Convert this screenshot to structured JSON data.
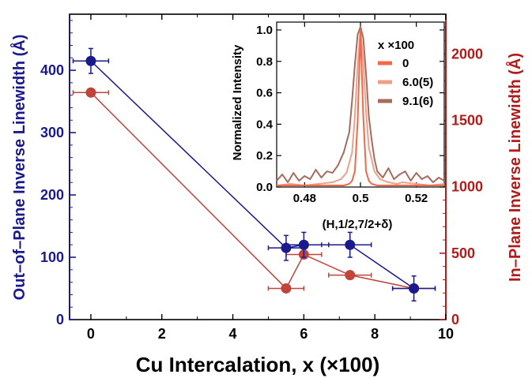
{
  "chart_data": [
    {
      "type": "scatter",
      "title": "",
      "xlabel": "Cu Intercalation, x (×100)",
      "ylabel_left": "Out–of–Plane Inverse Linewidth (Å)",
      "ylabel_right": "In–Plane Inverse Linewidth (Å)",
      "xlim": [
        -0.6,
        10
      ],
      "ylim_left": [
        0,
        490
      ],
      "ylim_right": [
        0,
        2300
      ],
      "xticks": [
        "0",
        "2",
        "4",
        "6",
        "8",
        "10"
      ],
      "yticks_left": [
        "0",
        "100",
        "200",
        "300",
        "400"
      ],
      "yticks_right": [
        "0",
        "500",
        "1000",
        "1500",
        "2000"
      ],
      "colors": {
        "left_axis": "#1a1a8c",
        "right_axis": "#b31b1b",
        "out_of_plane": "#1a1a8c",
        "in_plane": "#c0443a"
      },
      "series": [
        {
          "axis": "left",
          "points": [
            {
              "x": 0,
              "y": 415,
              "xerr": 0.5,
              "yerr": 20
            },
            {
              "x": 5.5,
              "y": 115,
              "xerr": 0.5,
              "yerr": 20
            },
            {
              "x": 6.0,
              "y": 120,
              "xerr": 0.5,
              "yerr": 20
            },
            {
              "x": 7.3,
              "y": 120,
              "xerr": 0.6,
              "yerr": 20
            },
            {
              "x": 9.1,
              "y": 50,
              "xerr": 0.6,
              "yerr": 20
            }
          ]
        },
        {
          "axis": "right",
          "points": [
            {
              "x": 0,
              "y": 1710,
              "xerr": 0.5
            },
            {
              "x": 5.5,
              "y": 235,
              "xerr": 0.5
            },
            {
              "x": 6.0,
              "y": 490,
              "xerr": 0.5
            },
            {
              "x": 7.3,
              "y": 335,
              "xerr": 0.6
            },
            {
              "x": 9.1,
              "y": 235,
              "xerr": 0.6
            }
          ]
        }
      ]
    },
    {
      "type": "line",
      "xlabel": "(H,1/2,7/2+δ)",
      "ylabel": "Normalized  Intensity",
      "xlim": [
        0.47,
        0.53
      ],
      "ylim": [
        0,
        1.05
      ],
      "xticks": [
        "0.48",
        "0.5",
        "0.52"
      ],
      "yticks": [
        "0.0",
        "0.2",
        "0.4",
        "0.6",
        "0.8",
        "1.0"
      ],
      "legend_title": "x ×100",
      "legend_position": "top-right",
      "series": [
        {
          "name": "0",
          "color": "#f06a4a",
          "x": [
            0.47,
            0.475,
            0.48,
            0.485,
            0.49,
            0.494,
            0.496,
            0.497,
            0.498,
            0.499,
            0.5,
            0.501,
            0.502,
            0.503,
            0.504,
            0.506,
            0.51,
            0.515,
            0.52,
            0.525,
            0.53
          ],
          "y": [
            0.01,
            0.01,
            0.01,
            0.01,
            0.01,
            0.01,
            0.02,
            0.04,
            0.1,
            0.42,
            1.0,
            0.45,
            0.1,
            0.04,
            0.02,
            0.01,
            0.01,
            0.01,
            0.01,
            0.01,
            0.01
          ]
        },
        {
          "name": "6.0(5)",
          "color": "#eea08a",
          "x": [
            0.47,
            0.475,
            0.48,
            0.485,
            0.49,
            0.493,
            0.495,
            0.497,
            0.498,
            0.499,
            0.5,
            0.501,
            0.502,
            0.503,
            0.505,
            0.507,
            0.51,
            0.513,
            0.515,
            0.52,
            0.525,
            0.53
          ],
          "y": [
            0.01,
            0.02,
            0.01,
            0.02,
            0.03,
            0.05,
            0.09,
            0.22,
            0.45,
            0.78,
            1.0,
            0.8,
            0.48,
            0.25,
            0.1,
            0.05,
            0.03,
            0.02,
            0.03,
            0.02,
            0.01,
            0.02
          ]
        },
        {
          "name": "9.1(6)",
          "color": "#a56c5e",
          "x": [
            0.47,
            0.472,
            0.474,
            0.476,
            0.478,
            0.48,
            0.482,
            0.484,
            0.486,
            0.488,
            0.49,
            0.492,
            0.494,
            0.496,
            0.497,
            0.498,
            0.499,
            0.5,
            0.501,
            0.502,
            0.503,
            0.504,
            0.505,
            0.506,
            0.508,
            0.51,
            0.512,
            0.514,
            0.516,
            0.518,
            0.52,
            0.522,
            0.524,
            0.526,
            0.528,
            0.53
          ],
          "y": [
            0.04,
            0.08,
            0.03,
            0.09,
            0.04,
            0.07,
            0.05,
            0.11,
            0.06,
            0.1,
            0.09,
            0.14,
            0.22,
            0.35,
            0.55,
            0.78,
            0.97,
            1.02,
            0.95,
            0.72,
            0.45,
            0.3,
            0.18,
            0.1,
            0.06,
            0.12,
            0.05,
            0.08,
            0.1,
            0.04,
            0.09,
            0.05,
            0.07,
            0.03,
            0.06,
            0.04
          ]
        }
      ]
    }
  ]
}
